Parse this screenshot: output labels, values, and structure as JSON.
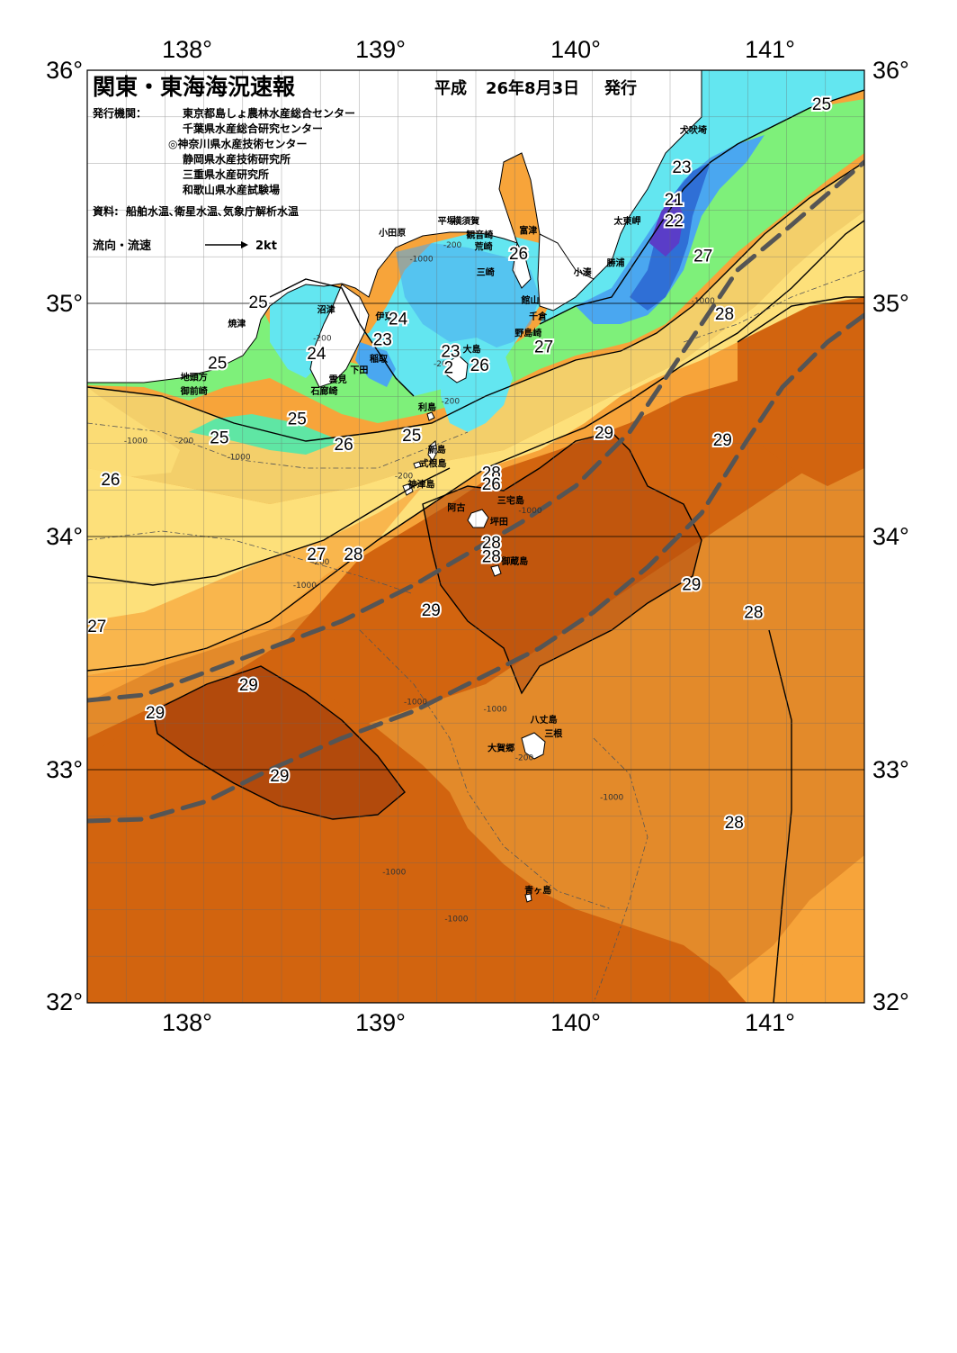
{
  "header": {
    "title": "関東・東海海況速報",
    "issue_era": "平成",
    "issue_date": "26年8月3日",
    "issue_label": "発行",
    "publisher_label": "発行機関：",
    "publishers": [
      "東京都島しょ農林水産総合センター",
      "千葉県水産総合研究センター",
      "◎神奈川県水産技術センター",
      "静岡県水産技術研究所",
      "三重県水産研究所",
      "和歌山県水産試験場"
    ],
    "sources_label": "資料:",
    "sources": "船舶水温､衛星水温､気象庁解析水温",
    "flow_legend_label": "流向・流速",
    "flow_legend_value": "2kt"
  },
  "axes": {
    "lon_ticks": [
      "138°",
      "139°",
      "140°",
      "141°"
    ],
    "lat_ticks": [
      "36°",
      "35°",
      "34°",
      "33°",
      "32°"
    ],
    "lon_range": [
      137.5,
      141.5
    ],
    "lat_range": [
      32.0,
      36.0
    ]
  },
  "place_names": [
    {
      "name": "犬吠埼",
      "lon": 140.62,
      "lat": 35.73
    },
    {
      "name": "太東岬",
      "lon": 140.28,
      "lat": 35.34
    },
    {
      "name": "勝浦",
      "lon": 140.22,
      "lat": 35.16
    },
    {
      "name": "小湊",
      "lon": 140.05,
      "lat": 35.12
    },
    {
      "name": "富津",
      "lon": 139.77,
      "lat": 35.3
    },
    {
      "name": "横須賀",
      "lon": 139.45,
      "lat": 35.34
    },
    {
      "name": "観音崎",
      "lon": 139.52,
      "lat": 35.28
    },
    {
      "name": "平塚",
      "lon": 139.35,
      "lat": 35.34
    },
    {
      "name": "小田原",
      "lon": 139.07,
      "lat": 35.29
    },
    {
      "name": "荒崎",
      "lon": 139.54,
      "lat": 35.23
    },
    {
      "name": "三崎",
      "lon": 139.55,
      "lat": 35.12
    },
    {
      "name": "館山",
      "lon": 139.78,
      "lat": 35.0
    },
    {
      "name": "千倉",
      "lon": 139.82,
      "lat": 34.93
    },
    {
      "name": "野島崎",
      "lon": 139.77,
      "lat": 34.86
    },
    {
      "name": "伊東",
      "lon": 139.03,
      "lat": 34.93
    },
    {
      "name": "沼津",
      "lon": 138.73,
      "lat": 34.96
    },
    {
      "name": "稲取",
      "lon": 139.0,
      "lat": 34.75
    },
    {
      "name": "下田",
      "lon": 138.9,
      "lat": 34.7
    },
    {
      "name": "雲見",
      "lon": 138.79,
      "lat": 34.66
    },
    {
      "name": "石廊崎",
      "lon": 138.72,
      "lat": 34.61
    },
    {
      "name": "焼津",
      "lon": 138.27,
      "lat": 34.9
    },
    {
      "name": "地頭方",
      "lon": 138.05,
      "lat": 34.67
    },
    {
      "name": "御前崎",
      "lon": 138.05,
      "lat": 34.61
    },
    {
      "name": "大島",
      "lon": 139.48,
      "lat": 34.79
    },
    {
      "name": "利島",
      "lon": 139.25,
      "lat": 34.54
    },
    {
      "name": "新島",
      "lon": 139.3,
      "lat": 34.36
    },
    {
      "name": "式根島",
      "lon": 139.28,
      "lat": 34.3
    },
    {
      "name": "神津島",
      "lon": 139.22,
      "lat": 34.21
    },
    {
      "name": "三宅島",
      "lon": 139.68,
      "lat": 34.14
    },
    {
      "name": "坪田",
      "lon": 139.62,
      "lat": 34.05
    },
    {
      "name": "阿古",
      "lon": 139.4,
      "lat": 34.11
    },
    {
      "name": "御蔵島",
      "lon": 139.7,
      "lat": 33.88
    },
    {
      "name": "八丈島",
      "lon": 139.85,
      "lat": 33.2
    },
    {
      "name": "三根",
      "lon": 139.9,
      "lat": 33.14
    },
    {
      "name": "大賀郷",
      "lon": 139.63,
      "lat": 33.08
    },
    {
      "name": "青ヶ島",
      "lon": 139.82,
      "lat": 32.47
    }
  ],
  "temperature_labels": [
    {
      "text": "25",
      "lon": 141.28,
      "lat": 35.83
    },
    {
      "text": "23",
      "lon": 140.56,
      "lat": 35.56
    },
    {
      "text": "21",
      "lon": 140.52,
      "lat": 35.42
    },
    {
      "text": "22",
      "lon": 140.52,
      "lat": 35.33
    },
    {
      "text": "27",
      "lon": 140.67,
      "lat": 35.18
    },
    {
      "text": "26",
      "lon": 139.72,
      "lat": 35.19
    },
    {
      "text": "28",
      "lon": 140.78,
      "lat": 34.93
    },
    {
      "text": "27",
      "lon": 139.85,
      "lat": 34.79
    },
    {
      "text": "25",
      "lon": 138.38,
      "lat": 34.98
    },
    {
      "text": "24",
      "lon": 139.1,
      "lat": 34.91
    },
    {
      "text": "23",
      "lon": 139.02,
      "lat": 34.82
    },
    {
      "text": "24",
      "lon": 138.68,
      "lat": 34.76
    },
    {
      "text": "25",
      "lon": 138.17,
      "lat": 34.72
    },
    {
      "text": "23",
      "lon": 139.37,
      "lat": 34.77
    },
    {
      "text": "26",
      "lon": 139.52,
      "lat": 34.71
    },
    {
      "text": "2",
      "lon": 139.36,
      "lat": 34.7
    },
    {
      "text": "25",
      "lon": 138.58,
      "lat": 34.48
    },
    {
      "text": "25",
      "lon": 138.18,
      "lat": 34.4
    },
    {
      "text": "25",
      "lon": 139.17,
      "lat": 34.41
    },
    {
      "text": "26",
      "lon": 138.82,
      "lat": 34.37
    },
    {
      "text": "26",
      "lon": 137.62,
      "lat": 34.22
    },
    {
      "text": "29",
      "lon": 140.16,
      "lat": 34.42
    },
    {
      "text": "29",
      "lon": 140.77,
      "lat": 34.39
    },
    {
      "text": "28",
      "lon": 139.58,
      "lat": 34.25
    },
    {
      "text": "26",
      "lon": 139.58,
      "lat": 34.2
    },
    {
      "text": "28",
      "lon": 139.58,
      "lat": 33.95
    },
    {
      "text": "28",
      "lon": 139.58,
      "lat": 33.89
    },
    {
      "text": "27",
      "lon": 138.68,
      "lat": 33.9
    },
    {
      "text": "28",
      "lon": 138.87,
      "lat": 33.9
    },
    {
      "text": "29",
      "lon": 139.27,
      "lat": 33.66
    },
    {
      "text": "29",
      "lon": 140.61,
      "lat": 33.77
    },
    {
      "text": "28",
      "lon": 140.93,
      "lat": 33.65
    },
    {
      "text": "27",
      "lon": 137.55,
      "lat": 33.59
    },
    {
      "text": "29",
      "lon": 138.33,
      "lat": 33.34
    },
    {
      "text": "29",
      "lon": 137.85,
      "lat": 33.22
    },
    {
      "text": "29",
      "lon": 138.49,
      "lat": 32.95
    },
    {
      "text": "28",
      "lon": 140.83,
      "lat": 32.75
    }
  ],
  "depth_labels": [
    {
      "text": "-200",
      "lon": 139.38,
      "lat": 35.24
    },
    {
      "text": "-1000",
      "lon": 139.22,
      "lat": 35.18
    },
    {
      "text": "-200",
      "lon": 138.71,
      "lat": 34.84
    },
    {
      "text": "-200",
      "lon": 139.33,
      "lat": 34.73
    },
    {
      "text": "-200",
      "lon": 139.37,
      "lat": 34.57
    },
    {
      "text": "-1000",
      "lon": 140.67,
      "lat": 35.0
    },
    {
      "text": "-1000",
      "lon": 137.75,
      "lat": 34.4
    },
    {
      "text": "-200",
      "lon": 138.0,
      "lat": 34.4
    },
    {
      "text": "-1000",
      "lon": 138.28,
      "lat": 34.33
    },
    {
      "text": "-200",
      "lon": 139.13,
      "lat": 34.25
    },
    {
      "text": "-1000",
      "lon": 139.78,
      "lat": 34.1
    },
    {
      "text": "-200",
      "lon": 138.7,
      "lat": 33.88
    },
    {
      "text": "-1000",
      "lon": 138.62,
      "lat": 33.78
    },
    {
      "text": "-1000",
      "lon": 139.19,
      "lat": 33.28
    },
    {
      "text": "-1000",
      "lon": 139.6,
      "lat": 33.25
    },
    {
      "text": "-200",
      "lon": 139.75,
      "lat": 33.04
    },
    {
      "text": "-1000",
      "lon": 140.2,
      "lat": 32.87
    },
    {
      "text": "-1000",
      "lon": 139.08,
      "lat": 32.55
    },
    {
      "text": "-1000",
      "lon": 139.4,
      "lat": 32.35
    }
  ],
  "colors": {
    "land": "#ffffff",
    "t21": "#5a3dc8",
    "t22": "#2f6fd6",
    "t23": "#4aa7f0",
    "t24": "#63e6f0",
    "t25": "#5fe6a4",
    "t26": "#7ef07a",
    "t27": "#fde07a",
    "t28": "#f7a43a",
    "t29": "#e38a2a",
    "t29b": "#d2640f",
    "t30": "#b24a0c",
    "kuroshio_axis": "#555555"
  }
}
